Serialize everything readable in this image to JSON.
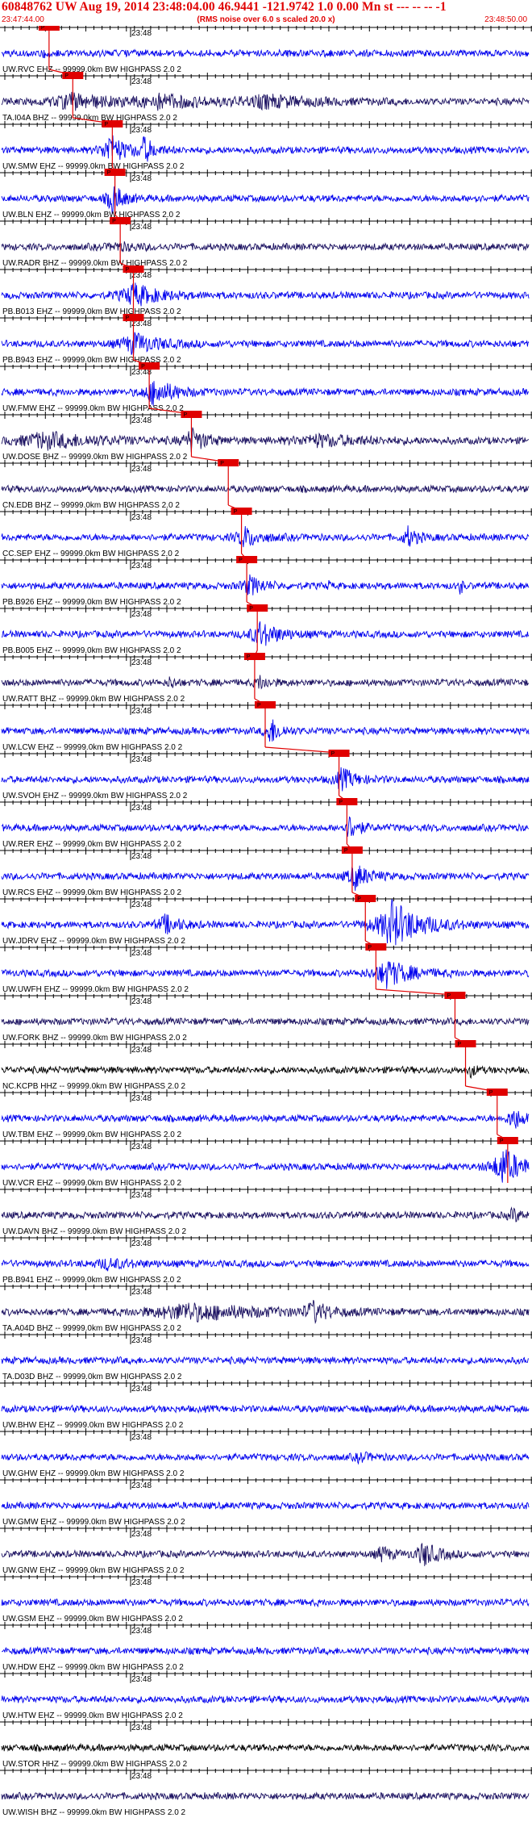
{
  "header": {
    "title": "60848762 UW Aug 19, 2014 23:48:04.00   46.9441 -121.9742  1.0 0.00 Mn st --- -- --  -1",
    "start_time": "23:47:44.00",
    "noise_note": "(RMS noise over 6.0 s scaled 20.0 x)",
    "end_time": "23:48:50.00"
  },
  "time_label": "23:48",
  "pick_label": "P",
  "colors": {
    "header": "#e00000",
    "trace_blue": "#0000ee",
    "trace_dark": "#1a1060",
    "trace_black": "#000000",
    "pick_line": "#e00000"
  },
  "traces": [
    {
      "label": "UW.RVC EHZ -- 99999.0km BW  HIGHPASS  2.0  2",
      "color": "blue",
      "pick": 0.09,
      "events": [
        [
          0.08,
          0.3,
          0.02
        ]
      ]
    },
    {
      "label": "TA.I04A BHZ -- 99999.0km BW  HIGHPASS  2.0  2",
      "color": "dark",
      "pick": 0.135,
      "events": [
        [
          0.13,
          1.0,
          0.08
        ],
        [
          0.3,
          0.8,
          0.1
        ],
        [
          0.5,
          0.7,
          0.1
        ]
      ]
    },
    {
      "label": "UW.SMW EHZ -- 99999.0km BW  HIGHPASS  2.0  2",
      "color": "blue",
      "pick": 0.21,
      "events": [
        [
          0.205,
          2.2,
          0.03
        ],
        [
          0.27,
          1.6,
          0.02
        ]
      ]
    },
    {
      "label": "UW.BLN EHZ -- 99999.0km BW  HIGHPASS  2.0  2",
      "color": "blue",
      "pick": 0.215,
      "events": [
        [
          0.21,
          2.2,
          0.02
        ],
        [
          0.9,
          0.8,
          0.003
        ]
      ]
    },
    {
      "label": "UW.RADR BHZ -- 99999.0km BW  HIGHPASS  2.0  2",
      "color": "dark",
      "pick": 0.225,
      "events": [
        [
          0.22,
          0.4,
          0.05
        ]
      ]
    },
    {
      "label": "PB.B013 EHZ -- 99999.0km BW  HIGHPASS  2.0  2",
      "color": "blue",
      "pick": 0.25,
      "events": [
        [
          0.25,
          1.5,
          0.05
        ]
      ]
    },
    {
      "label": "PB.B943 EHZ -- 99999.0km BW  HIGHPASS  2.0  2",
      "color": "blue",
      "pick": 0.25,
      "events": [
        [
          0.25,
          1.4,
          0.05
        ]
      ]
    },
    {
      "label": "UW.FMW EHZ -- 99999.0km BW  HIGHPASS  2.0  2",
      "color": "blue",
      "pick": 0.28,
      "events": [
        [
          0.29,
          1.8,
          0.04
        ]
      ]
    },
    {
      "label": "UW.DOSE BHZ -- 99999.0km BW  HIGHPASS  2.0  2",
      "color": "dark",
      "pick": 0.36,
      "events": [
        [
          0.08,
          1.0,
          0.12
        ],
        [
          0.36,
          1.5,
          0.03
        ],
        [
          0.6,
          0.7,
          0.1
        ]
      ]
    },
    {
      "label": "CN.EDB BHZ -- 99999.0km BW  HIGHPASS  2.0  2",
      "color": "dark",
      "pick": 0.43,
      "events": []
    },
    {
      "label": "CC.SEP EHZ -- 99999.0km BW  HIGHPASS  2.0  2",
      "color": "blue",
      "pick": 0.455,
      "events": [
        [
          0.46,
          1.4,
          0.03
        ],
        [
          0.77,
          1.3,
          0.02
        ]
      ]
    },
    {
      "label": "PB.B926 EHZ -- 99999.0km BW  HIGHPASS  2.0  2",
      "color": "blue",
      "pick": 0.465,
      "events": [
        [
          0.47,
          1.2,
          0.03
        ],
        [
          0.87,
          1.4,
          0.004
        ],
        [
          0.62,
          0.6,
          0.004
        ]
      ]
    },
    {
      "label": "PB.B005 EHZ -- 99999.0km BW  HIGHPASS  2.0  2",
      "color": "blue",
      "pick": 0.485,
      "events": [
        [
          0.49,
          1.6,
          0.04
        ]
      ]
    },
    {
      "label": "UW.RATT BHZ -- 99999.0km BW  HIGHPASS  2.0  2",
      "color": "dark",
      "pick": 0.48,
      "events": [
        [
          0.32,
          0.8,
          0.01
        ],
        [
          0.49,
          0.8,
          0.02
        ]
      ]
    },
    {
      "label": "UW.LCW EHZ -- 99999.0km BW  HIGHPASS  2.0  2",
      "color": "blue",
      "pick": 0.5,
      "events": [
        [
          0.51,
          1.8,
          0.02
        ]
      ]
    },
    {
      "label": "UW.SVOH EHZ -- 99999.0km BW  HIGHPASS  2.0  2",
      "color": "blue",
      "pick": 0.64,
      "events": [
        [
          0.645,
          1.4,
          0.03
        ]
      ]
    },
    {
      "label": "UW.RER EHZ -- 99999.0km BW  HIGHPASS  2.0  2",
      "color": "blue",
      "pick": 0.655,
      "events": [
        [
          0.66,
          1.6,
          0.02
        ]
      ]
    },
    {
      "label": "UW.RCS EHZ -- 99999.0km BW  HIGHPASS  2.0  2",
      "color": "blue",
      "pick": 0.665,
      "events": [
        [
          0.67,
          1.6,
          0.03
        ]
      ]
    },
    {
      "label": "UW.JDRV EHZ -- 99999.0km BW  HIGHPASS  2.0  2",
      "color": "blue",
      "pick": 0.69,
      "events": [
        [
          0.31,
          1.2,
          0.03
        ],
        [
          0.74,
          3.2,
          0.06
        ]
      ]
    },
    {
      "label": "UW.UWFH EHZ -- 99999.0km BW  HIGHPASS  2.0  2",
      "color": "blue",
      "pick": 0.71,
      "events": [
        [
          0.73,
          1.8,
          0.05
        ]
      ]
    },
    {
      "label": "UW.FORK BHZ -- 99999.0km BW  HIGHPASS  2.0  2",
      "color": "dark",
      "pick": 0.86,
      "events": []
    },
    {
      "label": "NC.KCPB HHZ -- 99999.0km BW  HIGHPASS  2.0  2",
      "color": "black",
      "pick": 0.88,
      "events": [
        [
          0.89,
          0.8,
          0.01
        ]
      ]
    },
    {
      "label": "UW.TBM EHZ -- 99999.0km BW  HIGHPASS  2.0  2",
      "color": "blue",
      "pick": 0.94,
      "events": [
        [
          0.97,
          1.6,
          0.02
        ]
      ]
    },
    {
      "label": "UW.VCR EHZ -- 99999.0km BW  HIGHPASS  2.0  2",
      "color": "blue",
      "pick": 0.96,
      "events": [
        [
          0.95,
          2.5,
          0.04
        ]
      ]
    },
    {
      "label": "UW.DAVN BHZ -- 99999.0km BW  HIGHPASS  2.0  2",
      "color": "dark",
      "pick": null,
      "events": [
        [
          0.97,
          0.8,
          0.02
        ]
      ]
    },
    {
      "label": "PB.B941 EHZ -- 99999.0km BW  HIGHPASS  2.0  2",
      "color": "blue",
      "pick": null,
      "events": [
        [
          0.2,
          0.6,
          0.05
        ]
      ]
    },
    {
      "label": "TA.A04D BHZ -- 99999.0km BW  HIGHPASS  2.0  2",
      "color": "dark",
      "pick": null,
      "events": [
        [
          0.35,
          1.1,
          0.15
        ],
        [
          0.59,
          1.3,
          0.03
        ]
      ]
    },
    {
      "label": "TA.D03D BHZ -- 99999.0km BW  HIGHPASS  2.0  2",
      "color": "blue",
      "pick": null,
      "events": []
    },
    {
      "label": "UW.BHW EHZ -- 99999.0km BW  HIGHPASS  2.0  2",
      "color": "blue",
      "pick": null,
      "events": []
    },
    {
      "label": "UW.GHW EHZ -- 99999.0km BW  HIGHPASS  2.0  2",
      "color": "blue",
      "pick": null,
      "events": [
        [
          0.68,
          0.6,
          0.02
        ]
      ]
    },
    {
      "label": "UW.GMW EHZ -- 99999.0km BW  HIGHPASS  2.0  2",
      "color": "blue",
      "pick": null,
      "events": []
    },
    {
      "label": "UW.GNW EHZ -- 99999.0km BW  HIGHPASS  2.0  2",
      "color": "dark",
      "pick": null,
      "events": [
        [
          0.8,
          1.6,
          0.03
        ],
        [
          0.72,
          1.0,
          0.02
        ]
      ]
    },
    {
      "label": "UW.GSM EHZ -- 99999.0km BW  HIGHPASS  2.0  2",
      "color": "blue",
      "pick": null,
      "events": []
    },
    {
      "label": "UW.HDW EHZ -- 99999.0km BW  HIGHPASS  2.0  2",
      "color": "blue",
      "pick": null,
      "events": []
    },
    {
      "label": "UW.HTW EHZ -- 99999.0km BW  HIGHPASS  2.0  2",
      "color": "blue",
      "pick": null,
      "events": []
    },
    {
      "label": "UW.STOR HHZ -- 99999.0km BW  HIGHPASS  2.0  2",
      "color": "black",
      "pick": null,
      "events": []
    },
    {
      "label": "UW.WISH BHZ -- 99999.0km BW  HIGHPASS  2.0  2",
      "color": "dark",
      "pick": null,
      "events": []
    }
  ]
}
